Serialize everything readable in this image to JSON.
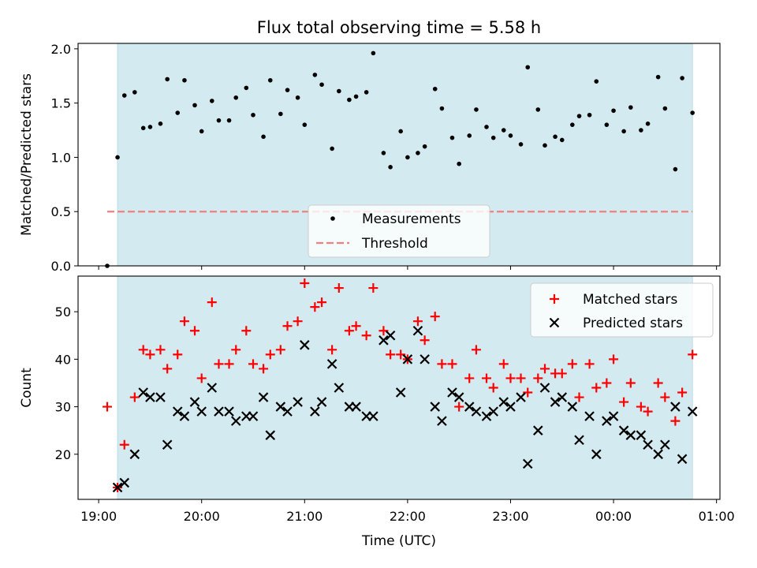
{
  "title": "Flux total observing time = 5.58 h",
  "xlabel": "Time (UTC)",
  "xticks": [
    {
      "label": "19:00",
      "t": 0
    },
    {
      "label": "20:00",
      "t": 60
    },
    {
      "label": "21:00",
      "t": 120
    },
    {
      "label": "22:00",
      "t": 180
    },
    {
      "label": "23:00",
      "t": 240
    },
    {
      "label": "00:00",
      "t": 300
    },
    {
      "label": "01:00",
      "t": 360
    }
  ],
  "colors": {
    "shade": "#d3eaf0",
    "measurements": "#000000",
    "threshold": "#f08080",
    "matched": "#ff0000",
    "predicted": "#000000"
  },
  "chart_data": [
    {
      "type": "scatter",
      "xlabel": "Time (UTC)",
      "ylabel": "Matched/Predicted stars",
      "xlim": [
        -12,
        362
      ],
      "ylim": [
        0,
        2.05
      ],
      "yticks": [
        "0.0",
        "0.5",
        "1.0",
        "1.5",
        "2.0"
      ],
      "observing_window": [
        11,
        346
      ],
      "legend": "lower-center",
      "legend_labels": [
        "Measurements",
        "Threshold"
      ],
      "threshold": {
        "name": "Threshold",
        "value": 0.5,
        "x_range": [
          5,
          346
        ],
        "style": "dashed"
      },
      "series": [
        {
          "name": "Measurements",
          "marker": "dot",
          "x": [
            5,
            11,
            15,
            21,
            26,
            30,
            36,
            40,
            46,
            50,
            56,
            60,
            66,
            70,
            76,
            80,
            86,
            90,
            96,
            100,
            106,
            110,
            116,
            120,
            126,
            130,
            136,
            140,
            146,
            150,
            156,
            160,
            166,
            170,
            176,
            180,
            186,
            190,
            196,
            200,
            206,
            210,
            216,
            220,
            226,
            230,
            236,
            240,
            246,
            250,
            256,
            260,
            266,
            270,
            276,
            280,
            286,
            290,
            296,
            300,
            306,
            310,
            316,
            320,
            326,
            330,
            336,
            340,
            346
          ],
          "y": [
            0.0,
            1.0,
            1.57,
            1.6,
            1.27,
            1.28,
            1.31,
            1.72,
            1.41,
            1.71,
            1.48,
            1.24,
            1.52,
            1.34,
            1.34,
            1.55,
            1.64,
            1.39,
            1.19,
            1.71,
            1.4,
            1.62,
            1.55,
            1.3,
            1.76,
            1.67,
            1.08,
            1.61,
            1.53,
            1.56,
            1.6,
            1.96,
            1.04,
            0.91,
            1.24,
            1.0,
            1.04,
            1.1,
            1.63,
            1.45,
            1.18,
            0.94,
            1.2,
            1.44,
            1.28,
            1.18,
            1.25,
            1.2,
            1.12,
            1.83,
            1.44,
            1.11,
            1.19,
            1.16,
            1.3,
            1.38,
            1.39,
            1.7,
            1.3,
            1.43,
            1.24,
            1.46,
            1.25,
            1.31,
            1.74,
            1.45,
            0.89,
            1.73,
            1.41
          ]
        }
      ]
    },
    {
      "type": "scatter",
      "xlabel": "Time (UTC)",
      "ylabel": "Count",
      "xlim": [
        -12,
        362
      ],
      "ylim": [
        10.5,
        57.5
      ],
      "yticks": [
        "20",
        "30",
        "40",
        "50"
      ],
      "observing_window": [
        11,
        346
      ],
      "legend": "upper-right",
      "legend_labels": [
        "Matched stars",
        "Predicted stars"
      ],
      "series": [
        {
          "name": "Matched stars",
          "marker": "plus",
          "x": [
            5,
            11,
            15,
            21,
            26,
            30,
            36,
            40,
            46,
            50,
            56,
            60,
            66,
            70,
            76,
            80,
            86,
            90,
            96,
            100,
            106,
            110,
            116,
            120,
            126,
            130,
            136,
            140,
            146,
            150,
            156,
            160,
            166,
            170,
            176,
            180,
            186,
            190,
            196,
            200,
            206,
            210,
            216,
            220,
            226,
            230,
            236,
            240,
            246,
            250,
            256,
            260,
            266,
            270,
            276,
            280,
            286,
            290,
            296,
            300,
            306,
            310,
            316,
            320,
            326,
            330,
            336,
            340,
            346
          ],
          "y": [
            30,
            13,
            22,
            32,
            42,
            41,
            42,
            38,
            41,
            48,
            46,
            36,
            52,
            39,
            39,
            42,
            46,
            39,
            38,
            41,
            42,
            47,
            48,
            56,
            51,
            52,
            42,
            55,
            46,
            47,
            45,
            55,
            46,
            41,
            41,
            40,
            48,
            44,
            49,
            39,
            39,
            30,
            36,
            42,
            36,
            34,
            39,
            36,
            36,
            33,
            36,
            38,
            37,
            37,
            39,
            32,
            39,
            34,
            35,
            40,
            31,
            35,
            30,
            29,
            35,
            32,
            27,
            33,
            41
          ]
        },
        {
          "name": "Predicted stars",
          "marker": "x",
          "x": [
            11,
            15,
            21,
            26,
            30,
            36,
            40,
            46,
            50,
            56,
            60,
            66,
            70,
            76,
            80,
            86,
            90,
            96,
            100,
            106,
            110,
            116,
            120,
            126,
            130,
            136,
            140,
            146,
            150,
            156,
            160,
            166,
            170,
            176,
            180,
            186,
            190,
            196,
            200,
            206,
            210,
            216,
            220,
            226,
            230,
            236,
            240,
            246,
            250,
            256,
            260,
            266,
            270,
            276,
            280,
            286,
            290,
            296,
            300,
            306,
            310,
            316,
            320,
            326,
            330,
            336,
            340,
            346
          ],
          "y": [
            13,
            14,
            20,
            33,
            32,
            32,
            22,
            29,
            28,
            31,
            29,
            34,
            29,
            29,
            27,
            28,
            28,
            32,
            24,
            30,
            29,
            31,
            43,
            29,
            31,
            39,
            34,
            30,
            30,
            28,
            28,
            44,
            45,
            33,
            40,
            46,
            40,
            30,
            27,
            33,
            32,
            30,
            29,
            28,
            29,
            31,
            30,
            32,
            18,
            25,
            34,
            31,
            32,
            30,
            23,
            28,
            20,
            27,
            28,
            25,
            24,
            24,
            22,
            20,
            22,
            30,
            19,
            29
          ]
        }
      ]
    }
  ]
}
